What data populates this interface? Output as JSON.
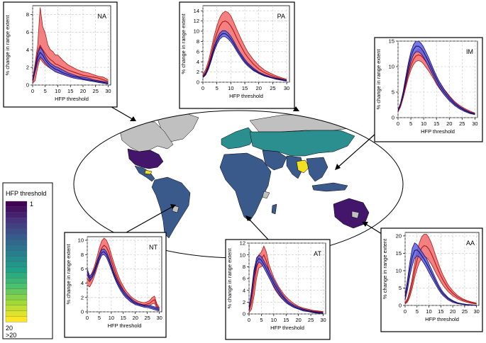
{
  "legend": {
    "title": "HFP threshold",
    "labels": [
      "1",
      "20",
      ">20"
    ],
    "colors": [
      "#440154",
      "#46327e",
      "#365c8d",
      "#277f8e",
      "#1fa187",
      "#4ac16d",
      "#a0da39",
      "#fde725"
    ]
  },
  "map_colors": {
    "ocean": "#ffffff",
    "outline": "#000000",
    "no_data": "#c0c0c0",
    "dominant": "#3b5a8c",
    "teal": "#2a8f8e",
    "dark": "#44166b",
    "yellow": "#f4e022"
  },
  "series_colors": {
    "red_fill": "#f26b6b",
    "red_line": "#b01818",
    "blue_fill": "#5c63e0",
    "blue_line": "#20106e",
    "purple_line": "#6a0aa0"
  },
  "chart_data": [
    {
      "type": "area",
      "region": "NA",
      "xlabel": "HFP threshold",
      "ylabel": "% change in range extent",
      "xlim": [
        0,
        31
      ],
      "ylim": [
        0,
        9
      ],
      "xticks": [
        0,
        5,
        10,
        15,
        20,
        25,
        30
      ],
      "yticks": [
        0,
        2,
        4,
        6,
        8
      ],
      "x": [
        0,
        1,
        2,
        3,
        4,
        5,
        6,
        7,
        8,
        9,
        10,
        12,
        14,
        16,
        18,
        20,
        22,
        24,
        26,
        28,
        30
      ],
      "red_band": {
        "upper": [
          0.6,
          2.5,
          4.5,
          8.8,
          6.6,
          5.9,
          4.6,
          4.0,
          3.8,
          3.4,
          3.4,
          2.8,
          2.3,
          2.0,
          1.7,
          1.5,
          1.4,
          1.2,
          1.0,
          0.9,
          0.6
        ],
        "mean": [
          0.4,
          2.0,
          3.8,
          4.5,
          4.0,
          3.6,
          3.2,
          2.9,
          2.7,
          2.4,
          2.3,
          2.0,
          1.7,
          1.5,
          1.3,
          1.1,
          1.0,
          0.9,
          0.8,
          0.6,
          0.4
        ],
        "lower": [
          0.2,
          0.5,
          2.0,
          3.0,
          2.6,
          2.3,
          2.1,
          1.9,
          1.7,
          1.5,
          1.4,
          1.2,
          1.0,
          0.9,
          0.8,
          0.7,
          0.6,
          0.5,
          0.4,
          0.3,
          0.2
        ]
      },
      "blue_band": {
        "upper": [
          0.5,
          2.0,
          3.5,
          4.3,
          3.9,
          3.3,
          2.8,
          2.5,
          2.3,
          2.1,
          2.0,
          1.7,
          1.4,
          1.2,
          1.0,
          0.9,
          0.8,
          0.6,
          0.5,
          0.4,
          0.3
        ],
        "mean": [
          0.4,
          1.8,
          3.1,
          3.7,
          3.4,
          2.9,
          2.5,
          2.2,
          2.0,
          1.8,
          1.7,
          1.4,
          1.2,
          1.0,
          0.9,
          0.7,
          0.6,
          0.5,
          0.4,
          0.3,
          0.2
        ],
        "lower": [
          0.3,
          1.5,
          2.6,
          3.2,
          2.9,
          2.5,
          2.2,
          1.9,
          1.7,
          1.5,
          1.4,
          1.2,
          1.0,
          0.8,
          0.7,
          0.6,
          0.5,
          0.4,
          0.3,
          0.2,
          0.1
        ]
      }
    },
    {
      "type": "area",
      "region": "PA",
      "xlabel": "HFP threshold",
      "ylabel": "% change in range extent",
      "xlim": [
        0,
        31
      ],
      "ylim": [
        0,
        15
      ],
      "xticks": [
        0,
        5,
        10,
        15,
        20,
        25,
        30
      ],
      "yticks": [
        0,
        2,
        4,
        6,
        8,
        10,
        12,
        14
      ],
      "x": [
        0,
        1,
        2,
        3,
        4,
        5,
        6,
        7,
        8,
        9,
        10,
        11,
        12,
        13,
        14,
        15,
        16,
        18,
        20,
        22,
        24,
        26,
        28,
        30
      ],
      "red_band": {
        "upper": [
          1.5,
          2.5,
          4.2,
          6.5,
          9.0,
          11.0,
          12.6,
          13.5,
          13.9,
          13.7,
          13.0,
          11.8,
          10.5,
          9.3,
          8.1,
          7.0,
          6.0,
          4.5,
          3.3,
          2.4,
          1.8,
          1.3,
          0.9,
          0.6
        ],
        "mean": [
          1.2,
          2.0,
          3.5,
          5.5,
          7.8,
          9.6,
          11.0,
          11.8,
          12.0,
          11.7,
          11.0,
          10.0,
          8.8,
          7.7,
          6.7,
          5.7,
          4.9,
          3.6,
          2.6,
          1.9,
          1.4,
          1.0,
          0.7,
          0.4
        ],
        "lower": [
          0.9,
          1.5,
          2.8,
          4.5,
          6.4,
          7.9,
          8.9,
          9.4,
          9.5,
          9.2,
          8.6,
          7.8,
          6.9,
          6.0,
          5.2,
          4.4,
          3.7,
          2.7,
          1.9,
          1.4,
          1.0,
          0.7,
          0.5,
          0.3
        ]
      },
      "blue_band": {
        "upper": [
          1.1,
          1.8,
          3.2,
          5.0,
          7.0,
          8.6,
          9.6,
          10.1,
          10.1,
          9.7,
          9.0,
          8.1,
          7.1,
          6.1,
          5.3,
          4.5,
          3.8,
          2.8,
          2.0,
          1.5,
          1.1,
          0.8,
          0.6,
          0.4
        ],
        "mean": [
          1.0,
          1.6,
          2.9,
          4.6,
          6.5,
          8.0,
          9.0,
          9.5,
          9.5,
          9.1,
          8.4,
          7.6,
          6.6,
          5.7,
          4.9,
          4.1,
          3.5,
          2.5,
          1.8,
          1.3,
          1.0,
          0.7,
          0.5,
          0.3
        ],
        "lower": [
          0.9,
          1.4,
          2.6,
          4.2,
          6.0,
          7.4,
          8.4,
          8.9,
          8.9,
          8.5,
          7.9,
          7.1,
          6.2,
          5.3,
          4.5,
          3.8,
          3.2,
          2.3,
          1.7,
          1.2,
          0.9,
          0.6,
          0.4,
          0.2
        ]
      }
    },
    {
      "type": "area",
      "region": "IM",
      "xlabel": "HFP threshold",
      "ylabel": "% change in range extent",
      "xlim": [
        0,
        31
      ],
      "ylim": [
        0,
        15
      ],
      "xticks": [
        0,
        5,
        10,
        15,
        20,
        25,
        30
      ],
      "yticks": [
        0,
        5,
        10,
        15
      ],
      "x": [
        0,
        1,
        2,
        3,
        4,
        5,
        6,
        7,
        8,
        9,
        10,
        11,
        12,
        13,
        14,
        15,
        16,
        18,
        20,
        22,
        24,
        26,
        28,
        30
      ],
      "red_band": {
        "upper": [
          1.3,
          2.5,
          4.4,
          6.8,
          9.2,
          11.1,
          12.4,
          13.1,
          13.4,
          13.2,
          12.7,
          12.0,
          11.1,
          10.1,
          9.1,
          8.1,
          7.2,
          5.6,
          4.3,
          3.2,
          2.4,
          1.8,
          1.3,
          0.9
        ],
        "mean": [
          1.2,
          2.3,
          4.1,
          6.3,
          8.5,
          10.2,
          11.4,
          12.1,
          12.3,
          12.1,
          11.6,
          10.9,
          10.1,
          9.2,
          8.3,
          7.4,
          6.5,
          5.0,
          3.8,
          2.8,
          2.1,
          1.5,
          1.1,
          0.7
        ],
        "lower": [
          1.1,
          2.1,
          3.8,
          5.8,
          7.8,
          9.3,
          10.4,
          11.0,
          11.2,
          11.0,
          10.5,
          9.8,
          9.1,
          8.3,
          7.5,
          6.6,
          5.8,
          4.5,
          3.4,
          2.5,
          1.8,
          1.3,
          0.9,
          0.6
        ]
      },
      "blue_band": {
        "upper": [
          1.5,
          2.9,
          5.1,
          7.9,
          10.7,
          12.9,
          14.3,
          15.0,
          15.0,
          14.6,
          13.8,
          12.8,
          11.7,
          10.5,
          9.3,
          8.2,
          7.2,
          5.5,
          4.1,
          3.0,
          2.2,
          1.6,
          1.1,
          0.8
        ],
        "mean": [
          1.4,
          2.7,
          4.7,
          7.3,
          9.9,
          12.0,
          13.3,
          14.0,
          14.0,
          13.6,
          12.9,
          11.9,
          10.8,
          9.7,
          8.6,
          7.6,
          6.6,
          5.0,
          3.7,
          2.7,
          2.0,
          1.4,
          1.0,
          0.7
        ],
        "lower": [
          1.3,
          2.5,
          4.3,
          6.7,
          9.1,
          11.0,
          12.3,
          12.9,
          12.9,
          12.5,
          11.8,
          10.9,
          9.9,
          8.9,
          7.9,
          6.9,
          6.0,
          4.5,
          3.3,
          2.4,
          1.7,
          1.2,
          0.8,
          0.6
        ]
      }
    },
    {
      "type": "area",
      "region": "NT",
      "xlabel": "HFP threshold",
      "ylabel": "% change in range extent",
      "xlim": [
        0,
        31
      ],
      "ylim": [
        0,
        10.5
      ],
      "xticks": [
        0,
        5,
        10,
        15,
        20,
        25,
        30
      ],
      "yticks": [
        0,
        2,
        4,
        6,
        8,
        10
      ],
      "x": [
        0,
        1,
        2,
        3,
        4,
        5,
        6,
        7,
        8,
        9,
        10,
        11,
        12,
        13,
        14,
        15,
        16,
        17,
        18,
        19,
        20,
        21,
        22,
        23,
        24,
        25,
        26,
        27,
        28,
        29,
        30
      ],
      "red_band": {
        "upper": [
          5.5,
          4.9,
          5.5,
          6.4,
          7.6,
          8.9,
          9.9,
          10.3,
          10.0,
          9.2,
          8.0,
          6.9,
          5.9,
          5.0,
          4.2,
          3.6,
          3.0,
          2.6,
          2.2,
          1.9,
          1.7,
          1.5,
          1.4,
          1.3,
          1.3,
          1.4,
          1.6,
          2.0,
          2.2,
          1.1,
          0.6
        ],
        "mean": [
          4.6,
          4.2,
          4.8,
          5.7,
          6.8,
          8.0,
          8.9,
          9.3,
          9.0,
          8.3,
          7.2,
          6.2,
          5.2,
          4.4,
          3.7,
          3.1,
          2.6,
          2.2,
          1.9,
          1.6,
          1.4,
          1.2,
          1.1,
          1.0,
          1.0,
          1.1,
          1.2,
          1.5,
          1.7,
          0.8,
          0.4
        ],
        "lower": [
          3.7,
          3.5,
          4.1,
          5.0,
          6.0,
          7.1,
          7.9,
          8.2,
          8.0,
          7.3,
          6.4,
          5.4,
          4.5,
          3.8,
          3.2,
          2.6,
          2.2,
          1.8,
          1.5,
          1.3,
          1.1,
          1.0,
          0.9,
          0.8,
          0.8,
          0.8,
          0.9,
          1.1,
          1.2,
          0.5,
          0.2
        ]
      },
      "blue_band": {
        "upper": [
          6.0,
          5.0,
          5.3,
          6.0,
          7.0,
          8.0,
          8.7,
          8.8,
          8.4,
          7.6,
          6.6,
          5.6,
          4.8,
          4.1,
          3.5,
          3.0,
          2.6,
          2.2,
          1.9,
          1.6,
          1.4,
          1.2,
          1.1,
          1.0,
          0.9,
          0.9,
          0.9,
          0.8,
          0.7,
          0.6,
          0.5
        ],
        "mean": [
          5.6,
          4.7,
          5.0,
          5.7,
          6.7,
          7.6,
          8.3,
          8.4,
          8.0,
          7.2,
          6.3,
          5.3,
          4.5,
          3.8,
          3.2,
          2.7,
          2.3,
          2.0,
          1.7,
          1.4,
          1.2,
          1.1,
          1.0,
          0.9,
          0.8,
          0.8,
          0.7,
          0.6,
          0.5,
          0.4,
          0.3
        ],
        "lower": [
          5.2,
          4.4,
          4.7,
          5.4,
          6.4,
          7.2,
          7.9,
          8.0,
          7.6,
          6.8,
          5.9,
          5.0,
          4.2,
          3.5,
          2.9,
          2.4,
          2.0,
          1.7,
          1.4,
          1.2,
          1.0,
          0.9,
          0.8,
          0.7,
          0.6,
          0.6,
          0.5,
          0.4,
          0.3,
          0.2,
          0.1
        ]
      }
    },
    {
      "type": "area",
      "region": "AT",
      "xlabel": "HFP threshold",
      "ylabel": "% change in range extent",
      "xlim": [
        0,
        31
      ],
      "ylim": [
        0,
        12
      ],
      "xticks": [
        0,
        5,
        10,
        15,
        20,
        25,
        30
      ],
      "yticks": [
        0,
        2,
        4,
        6,
        8,
        10,
        12
      ],
      "x": [
        0,
        1,
        2,
        3,
        4,
        5,
        6,
        7,
        8,
        9,
        10,
        11,
        12,
        13,
        14,
        15,
        16,
        18,
        20,
        22,
        24,
        26,
        28,
        30
      ],
      "red_band": {
        "upper": [
          1.0,
          3.5,
          7.0,
          9.5,
          10.0,
          10.5,
          11.5,
          10.5,
          8.5,
          7.3,
          6.2,
          5.4,
          4.6,
          4.0,
          3.4,
          2.9,
          2.5,
          1.8,
          1.3,
          1.0,
          0.8,
          0.6,
          0.5,
          0.4
        ],
        "mean": [
          0.5,
          2.0,
          5.0,
          7.8,
          9.0,
          9.3,
          10.0,
          9.0,
          7.5,
          6.3,
          5.3,
          4.6,
          3.9,
          3.3,
          2.8,
          2.4,
          2.0,
          1.5,
          1.1,
          0.8,
          0.6,
          0.5,
          0.4,
          0.3
        ],
        "lower": [
          0.2,
          0.8,
          3.0,
          6.0,
          7.8,
          8.0,
          8.5,
          7.5,
          6.5,
          5.4,
          4.5,
          3.8,
          3.2,
          2.7,
          2.3,
          1.9,
          1.6,
          1.2,
          0.9,
          0.6,
          0.5,
          0.4,
          0.3,
          0.2
        ]
      },
      "blue_band": {
        "upper": [
          1.0,
          4.0,
          7.5,
          9.3,
          10.0,
          9.7,
          9.0,
          8.2,
          7.4,
          6.6,
          5.8,
          5.0,
          4.3,
          3.6,
          3.0,
          2.5,
          2.1,
          1.5,
          1.1,
          0.8,
          0.6,
          0.4,
          0.3,
          0.2
        ],
        "mean": [
          0.8,
          3.5,
          6.9,
          8.8,
          9.4,
          9.1,
          8.4,
          7.6,
          6.8,
          6.0,
          5.2,
          4.5,
          3.8,
          3.2,
          2.7,
          2.2,
          1.8,
          1.3,
          0.9,
          0.7,
          0.5,
          0.3,
          0.2,
          0.1
        ],
        "lower": [
          0.6,
          3.0,
          6.2,
          8.2,
          8.8,
          8.5,
          7.8,
          7.0,
          6.2,
          5.4,
          4.7,
          4.0,
          3.4,
          2.8,
          2.3,
          1.9,
          1.6,
          1.1,
          0.8,
          0.5,
          0.4,
          0.2,
          0.1,
          0.1
        ]
      }
    },
    {
      "type": "area",
      "region": "AA",
      "xlabel": "HFP threshold",
      "ylabel": "% change in range extent",
      "xlim": [
        0,
        31
      ],
      "ylim": [
        0,
        21
      ],
      "xticks": [
        0,
        5,
        10,
        15,
        20,
        25,
        30
      ],
      "yticks": [
        0,
        5,
        10,
        15,
        20
      ],
      "x": [
        0,
        1,
        2,
        3,
        4,
        5,
        6,
        7,
        8,
        9,
        10,
        11,
        12,
        13,
        14,
        15,
        16,
        18,
        20,
        22,
        24,
        26,
        28,
        30
      ],
      "red_band": {
        "upper": [
          0.8,
          2.0,
          4.5,
          8.0,
          12.0,
          15.5,
          18.0,
          19.8,
          20.5,
          20.5,
          19.5,
          18.0,
          16.0,
          14.0,
          12.0,
          10.2,
          8.6,
          6.0,
          4.2,
          2.9,
          2.0,
          1.4,
          1.0,
          0.7
        ],
        "mean": [
          0.6,
          1.5,
          3.5,
          6.5,
          10.0,
          13.0,
          15.2,
          16.6,
          17.2,
          17.0,
          16.2,
          14.9,
          13.3,
          11.6,
          10.0,
          8.5,
          7.2,
          5.0,
          3.5,
          2.4,
          1.7,
          1.2,
          0.8,
          0.6
        ],
        "lower": [
          0.4,
          1.0,
          2.5,
          5.0,
          8.0,
          10.5,
          12.4,
          13.5,
          14.0,
          13.8,
          13.0,
          11.9,
          10.6,
          9.3,
          8.0,
          6.8,
          5.7,
          4.0,
          2.8,
          1.9,
          1.3,
          0.9,
          0.6,
          0.4
        ]
      },
      "blue_band": {
        "upper": [
          3.0,
          7.5,
          12.5,
          16.5,
          18.0,
          17.5,
          16.5,
          15.5,
          14.5,
          13.5,
          12.0,
          10.5,
          9.0,
          7.5,
          6.0,
          4.8,
          3.8,
          2.3,
          1.4,
          0.8,
          0.5,
          0.3,
          0.2,
          0.1
        ],
        "mean": [
          2.2,
          6.0,
          10.5,
          14.0,
          15.8,
          16.0,
          15.3,
          14.3,
          13.3,
          12.1,
          10.8,
          9.4,
          8.0,
          6.6,
          5.3,
          4.2,
          3.3,
          2.0,
          1.2,
          0.7,
          0.4,
          0.2,
          0.1,
          0.1
        ],
        "lower": [
          1.5,
          4.5,
          8.5,
          11.5,
          13.5,
          14.3,
          13.9,
          13.0,
          12.0,
          10.8,
          9.5,
          8.2,
          7.0,
          5.8,
          4.6,
          3.6,
          2.8,
          1.6,
          0.9,
          0.5,
          0.3,
          0.1,
          0.1,
          0.0
        ]
      }
    }
  ]
}
